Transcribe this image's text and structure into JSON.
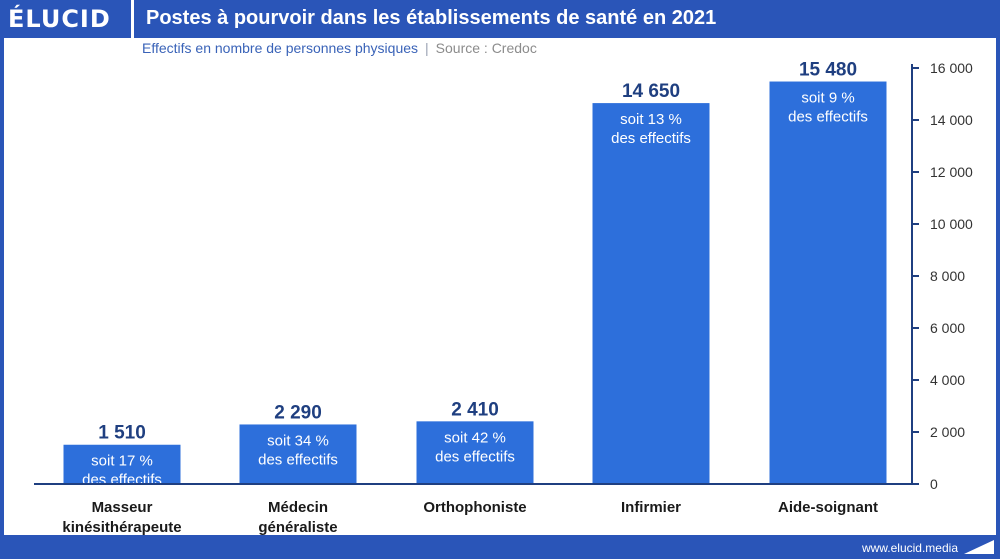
{
  "header": {
    "logo": "ÉLUCID",
    "title": "Postes à pourvoir dans les établissements de santé en 2021",
    "subtitle_main": "Effectifs en nombre de personnes physiques",
    "subtitle_separator": "|",
    "subtitle_source": "Source : Credoc"
  },
  "footer": {
    "url": "www.elucid.media"
  },
  "colors": {
    "brand": "#2a55b8",
    "bar": "#2d6fdb",
    "value_label": "#1f3f80",
    "axis": "#1f3f80"
  },
  "chart_data": {
    "type": "bar",
    "categories": [
      [
        "Masseur",
        "kinésithérapeute"
      ],
      [
        "Médecin",
        "généraliste"
      ],
      [
        "Orthophoniste"
      ],
      [
        "Infirmier"
      ],
      [
        "Aide-soignant"
      ]
    ],
    "values": [
      1510,
      2290,
      2410,
      14650,
      15480
    ],
    "value_labels": [
      "1 510",
      "2 290",
      "2 410",
      "14 650",
      "15 480"
    ],
    "bar_annotations": [
      [
        "soit 17 %",
        "des effectifs"
      ],
      [
        "soit 34 %",
        "des effectifs"
      ],
      [
        "soit 42 %",
        "des effectifs"
      ],
      [
        "soit 13 %",
        "des effectifs"
      ],
      [
        "soit 9 %",
        "des effectifs"
      ]
    ],
    "y_ticks": [
      0,
      2000,
      4000,
      6000,
      8000,
      10000,
      12000,
      14000,
      16000
    ],
    "y_tick_labels": [
      "0",
      "2 000",
      "4 000",
      "6 000",
      "8 000",
      "10 000",
      "12 000",
      "14 000",
      "16 000"
    ],
    "ylim": [
      0,
      16000
    ],
    "y_axis_side": "right",
    "grid": false,
    "legend": "none"
  }
}
